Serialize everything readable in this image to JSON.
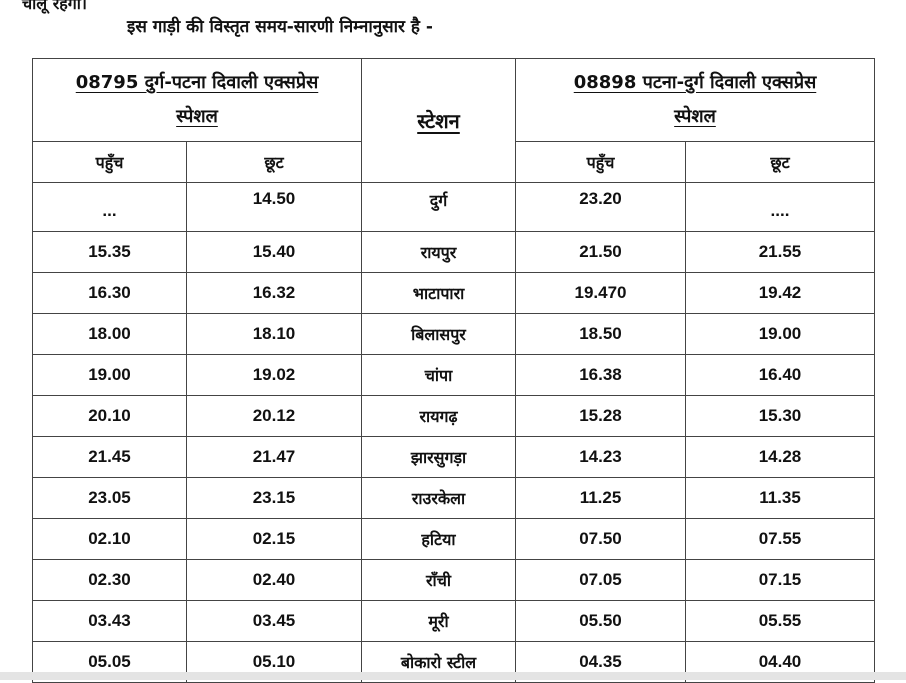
{
  "cut_text": "चालू रहेगी।",
  "intro": "इस गाड़ी की विस्तृत समय-सारणी निम्नानुसार है -",
  "table": {
    "left_group": {
      "line1": "08795 दुर्ग-पटना दिवाली एक्सप्रेस",
      "line2": "स्पेशल"
    },
    "station_header": "स्टेशन",
    "right_group": {
      "line1": "08898 पटना-दुर्ग  दिवाली एक्सप्रेस",
      "line2": "स्पेशल"
    },
    "arr_label": "पहुँच",
    "dep_label": "छूट",
    "rows": [
      {
        "l_arr": "...",
        "l_dep": "14.50",
        "station": "दुर्ग",
        "r_arr": "23.20",
        "r_dep": "...."
      },
      {
        "l_arr": "15.35",
        "l_dep": "15.40",
        "station": "रायपुर",
        "r_arr": "21.50",
        "r_dep": "21.55"
      },
      {
        "l_arr": "16.30",
        "l_dep": "16.32",
        "station": "भाटापारा",
        "r_arr": "19.470",
        "r_dep": "19.42"
      },
      {
        "l_arr": "18.00",
        "l_dep": "18.10",
        "station": "बिलासपुर",
        "r_arr": "18.50",
        "r_dep": "19.00"
      },
      {
        "l_arr": "19.00",
        "l_dep": "19.02",
        "station": "चांपा",
        "r_arr": "16.38",
        "r_dep": "16.40"
      },
      {
        "l_arr": "20.10",
        "l_dep": "20.12",
        "station": "रायगढ़",
        "r_arr": "15.28",
        "r_dep": "15.30"
      },
      {
        "l_arr": "21.45",
        "l_dep": "21.47",
        "station": "झारसुगड़ा",
        "r_arr": "14.23",
        "r_dep": "14.28"
      },
      {
        "l_arr": "23.05",
        "l_dep": "23.15",
        "station": "राउरकेला",
        "r_arr": "11.25",
        "r_dep": "11.35"
      },
      {
        "l_arr": "02.10",
        "l_dep": "02.15",
        "station": "हटिया",
        "r_arr": "07.50",
        "r_dep": "07.55"
      },
      {
        "l_arr": "02.30",
        "l_dep": "02.40",
        "station": "रॉंची",
        "r_arr": "07.05",
        "r_dep": "07.15"
      },
      {
        "l_arr": "03.43",
        "l_dep": "03.45",
        "station": "मूरी",
        "r_arr": "05.50",
        "r_dep": "05.55"
      },
      {
        "l_arr": "05.05",
        "l_dep": "05.10",
        "station": "बोकारो स्टील",
        "r_arr": "04.35",
        "r_dep": "04.40"
      }
    ]
  }
}
